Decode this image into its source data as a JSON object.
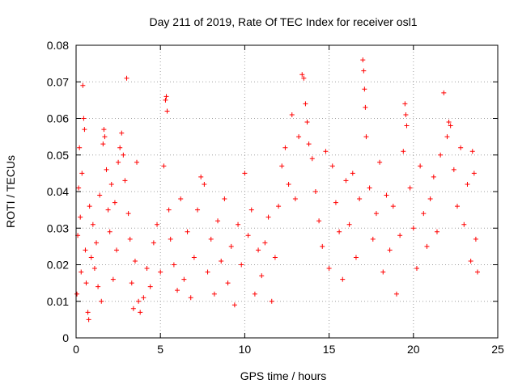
{
  "chart_data": {
    "type": "scatter",
    "title": "Day 211 of 2019, Rate Of TEC Index for receiver osl1",
    "xlabel": "GPS time / hours",
    "ylabel": "ROTI / TECUs",
    "xlim": [
      0,
      25
    ],
    "ylim": [
      0,
      0.08
    ],
    "xticks": [
      0,
      5,
      10,
      15,
      20,
      25
    ],
    "xtick_labels": [
      "0",
      "5",
      "10",
      "15",
      "20",
      "25"
    ],
    "yticks": [
      0,
      0.01,
      0.02,
      0.03,
      0.04,
      0.05,
      0.06,
      0.07,
      0.08
    ],
    "ytick_labels": [
      "0",
      "0.01",
      "0.02",
      "0.03",
      "0.04",
      "0.05",
      "0.06",
      "0.07",
      "0.08"
    ],
    "grid": true,
    "marker": "plus",
    "color": "#ff0000",
    "series": [
      {
        "name": "ROTI",
        "points": [
          [
            0.05,
            0.012
          ],
          [
            0.1,
            0.028
          ],
          [
            0.15,
            0.041
          ],
          [
            0.2,
            0.052
          ],
          [
            0.25,
            0.033
          ],
          [
            0.3,
            0.018
          ],
          [
            0.35,
            0.045
          ],
          [
            0.4,
            0.069
          ],
          [
            0.45,
            0.06
          ],
          [
            0.5,
            0.057
          ],
          [
            0.55,
            0.024
          ],
          [
            0.6,
            0.015
          ],
          [
            0.7,
            0.007
          ],
          [
            0.75,
            0.005
          ],
          [
            0.8,
            0.036
          ],
          [
            0.9,
            0.022
          ],
          [
            1.0,
            0.031
          ],
          [
            1.1,
            0.019
          ],
          [
            1.2,
            0.026
          ],
          [
            1.3,
            0.014
          ],
          [
            1.4,
            0.039
          ],
          [
            1.5,
            0.01
          ],
          [
            1.6,
            0.053
          ],
          [
            1.65,
            0.057
          ],
          [
            1.7,
            0.055
          ],
          [
            1.8,
            0.046
          ],
          [
            1.9,
            0.035
          ],
          [
            2.0,
            0.029
          ],
          [
            2.1,
            0.042
          ],
          [
            2.2,
            0.016
          ],
          [
            2.3,
            0.037
          ],
          [
            2.4,
            0.024
          ],
          [
            2.5,
            0.048
          ],
          [
            2.6,
            0.052
          ],
          [
            2.7,
            0.056
          ],
          [
            2.8,
            0.05
          ],
          [
            2.9,
            0.043
          ],
          [
            3.0,
            0.071
          ],
          [
            3.1,
            0.034
          ],
          [
            3.2,
            0.027
          ],
          [
            3.3,
            0.015
          ],
          [
            3.4,
            0.008
          ],
          [
            3.5,
            0.021
          ],
          [
            3.6,
            0.048
          ],
          [
            3.7,
            0.01
          ],
          [
            3.8,
            0.007
          ],
          [
            4.0,
            0.011
          ],
          [
            4.2,
            0.019
          ],
          [
            4.4,
            0.014
          ],
          [
            4.6,
            0.026
          ],
          [
            4.8,
            0.031
          ],
          [
            5.0,
            0.018
          ],
          [
            5.2,
            0.047
          ],
          [
            5.3,
            0.065
          ],
          [
            5.35,
            0.066
          ],
          [
            5.4,
            0.062
          ],
          [
            5.5,
            0.035
          ],
          [
            5.6,
            0.027
          ],
          [
            5.8,
            0.02
          ],
          [
            6.0,
            0.013
          ],
          [
            6.2,
            0.038
          ],
          [
            6.4,
            0.016
          ],
          [
            6.6,
            0.029
          ],
          [
            6.8,
            0.011
          ],
          [
            7.0,
            0.022
          ],
          [
            7.2,
            0.035
          ],
          [
            7.4,
            0.044
          ],
          [
            7.6,
            0.042
          ],
          [
            7.8,
            0.018
          ],
          [
            8.0,
            0.027
          ],
          [
            8.2,
            0.012
          ],
          [
            8.4,
            0.032
          ],
          [
            8.6,
            0.021
          ],
          [
            8.8,
            0.038
          ],
          [
            9.0,
            0.015
          ],
          [
            9.2,
            0.025
          ],
          [
            9.4,
            0.009
          ],
          [
            9.6,
            0.031
          ],
          [
            9.8,
            0.02
          ],
          [
            10.0,
            0.045
          ],
          [
            10.2,
            0.028
          ],
          [
            10.4,
            0.035
          ],
          [
            10.6,
            0.012
          ],
          [
            10.8,
            0.024
          ],
          [
            11.0,
            0.017
          ],
          [
            11.2,
            0.026
          ],
          [
            11.4,
            0.033
          ],
          [
            11.6,
            0.01
          ],
          [
            11.8,
            0.022
          ],
          [
            12.0,
            0.036
          ],
          [
            12.2,
            0.047
          ],
          [
            12.4,
            0.052
          ],
          [
            12.6,
            0.042
          ],
          [
            12.8,
            0.061
          ],
          [
            13.0,
            0.038
          ],
          [
            13.2,
            0.055
          ],
          [
            13.4,
            0.072
          ],
          [
            13.5,
            0.071
          ],
          [
            13.6,
            0.064
          ],
          [
            13.7,
            0.059
          ],
          [
            13.8,
            0.053
          ],
          [
            14.0,
            0.049
          ],
          [
            14.2,
            0.04
          ],
          [
            14.4,
            0.032
          ],
          [
            14.6,
            0.025
          ],
          [
            14.8,
            0.051
          ],
          [
            15.0,
            0.019
          ],
          [
            15.2,
            0.047
          ],
          [
            15.4,
            0.037
          ],
          [
            15.6,
            0.029
          ],
          [
            15.8,
            0.016
          ],
          [
            16.0,
            0.043
          ],
          [
            16.2,
            0.031
          ],
          [
            16.4,
            0.045
          ],
          [
            16.6,
            0.022
          ],
          [
            16.8,
            0.038
          ],
          [
            17.0,
            0.076
          ],
          [
            17.05,
            0.073
          ],
          [
            17.1,
            0.068
          ],
          [
            17.15,
            0.063
          ],
          [
            17.2,
            0.055
          ],
          [
            17.4,
            0.041
          ],
          [
            17.6,
            0.027
          ],
          [
            17.8,
            0.034
          ],
          [
            18.0,
            0.048
          ],
          [
            18.2,
            0.018
          ],
          [
            18.4,
            0.039
          ],
          [
            18.6,
            0.024
          ],
          [
            18.8,
            0.036
          ],
          [
            19.0,
            0.012
          ],
          [
            19.2,
            0.028
          ],
          [
            19.4,
            0.051
          ],
          [
            19.5,
            0.064
          ],
          [
            19.55,
            0.061
          ],
          [
            19.6,
            0.058
          ],
          [
            19.8,
            0.041
          ],
          [
            20.0,
            0.03
          ],
          [
            20.2,
            0.019
          ],
          [
            20.4,
            0.047
          ],
          [
            20.6,
            0.034
          ],
          [
            20.8,
            0.025
          ],
          [
            21.0,
            0.038
          ],
          [
            21.2,
            0.044
          ],
          [
            21.4,
            0.029
          ],
          [
            21.6,
            0.05
          ],
          [
            21.8,
            0.067
          ],
          [
            22.0,
            0.055
          ],
          [
            22.1,
            0.059
          ],
          [
            22.2,
            0.058
          ],
          [
            22.4,
            0.046
          ],
          [
            22.6,
            0.036
          ],
          [
            22.8,
            0.052
          ],
          [
            23.0,
            0.031
          ],
          [
            23.2,
            0.042
          ],
          [
            23.4,
            0.021
          ],
          [
            23.5,
            0.051
          ],
          [
            23.6,
            0.045
          ],
          [
            23.7,
            0.027
          ],
          [
            23.8,
            0.018
          ]
        ]
      }
    ]
  }
}
